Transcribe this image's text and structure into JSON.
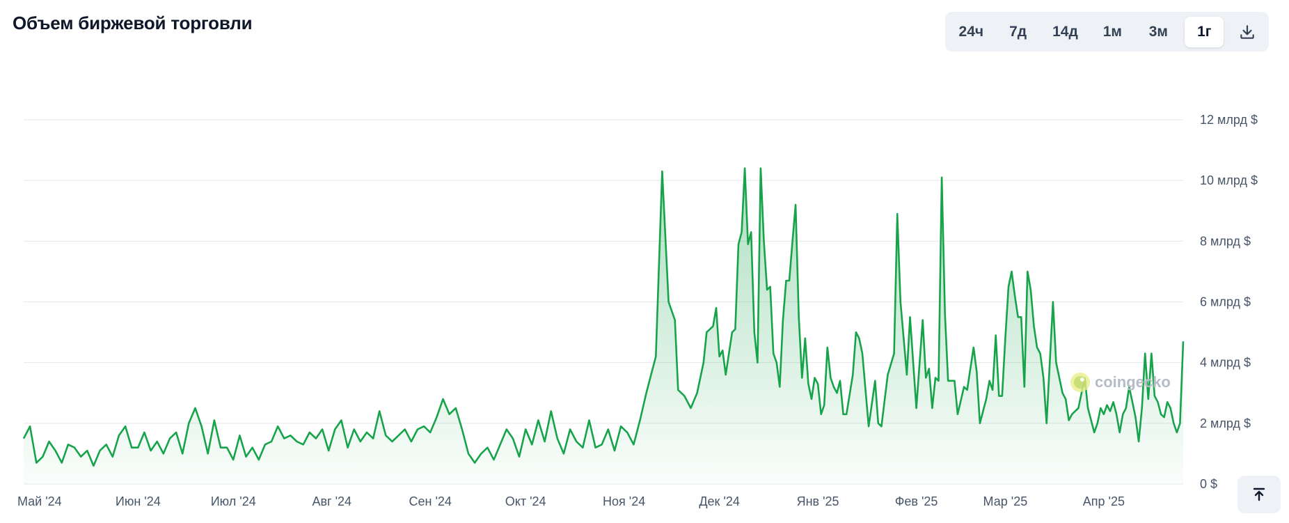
{
  "header": {
    "title": "Объем биржевой торговли"
  },
  "range_selector": {
    "options": [
      "24ч",
      "7д",
      "14д",
      "1м",
      "3м",
      "1г"
    ],
    "active": "1г",
    "download_icon": "download-icon"
  },
  "watermark": {
    "text": "coingecko",
    "icon": "coingecko-logo-icon"
  },
  "scroll_top": {
    "icon": "arrow-up-to-top-icon"
  },
  "colors": {
    "line": "#16a34a",
    "fill": "#16a34a",
    "grid": "#e5e7eb"
  },
  "chart_data": {
    "type": "area",
    "title": "Объем биржевой торговли",
    "x_tick_labels": [
      "Май '24",
      "Июн '24",
      "Июл '24",
      "Авг '24",
      "Сен '24",
      "Окт '24",
      "Ноя '24",
      "Дек '24",
      "Янв '25",
      "Фев '25",
      "Мар '25",
      "Апр '25"
    ],
    "y_tick_labels": [
      "0 $",
      "2 млрд $",
      "4 млрд $",
      "6 млрд $",
      "8 млрд $",
      "10 млрд $",
      "12 млрд $"
    ],
    "y_unit": "млрд $",
    "ylim": [
      0,
      12
    ],
    "xlim": [
      "2024-04-26",
      "2025-04-26"
    ],
    "grid": true,
    "axis_side": "right",
    "series": [
      {
        "points": [
          [
            "2024-04-26",
            1.5
          ],
          [
            "2024-04-28",
            1.9
          ],
          [
            "2024-04-30",
            0.7
          ],
          [
            "2024-05-02",
            0.9
          ],
          [
            "2024-05-04",
            1.4
          ],
          [
            "2024-05-06",
            1.1
          ],
          [
            "2024-05-08",
            0.7
          ],
          [
            "2024-05-10",
            1.3
          ],
          [
            "2024-05-12",
            1.2
          ],
          [
            "2024-05-14",
            0.9
          ],
          [
            "2024-05-16",
            1.1
          ],
          [
            "2024-05-18",
            0.6
          ],
          [
            "2024-05-20",
            1.1
          ],
          [
            "2024-05-22",
            1.3
          ],
          [
            "2024-05-24",
            0.9
          ],
          [
            "2024-05-26",
            1.6
          ],
          [
            "2024-05-28",
            1.9
          ],
          [
            "2024-05-30",
            1.2
          ],
          [
            "2024-06-01",
            1.2
          ],
          [
            "2024-06-03",
            1.7
          ],
          [
            "2024-06-05",
            1.1
          ],
          [
            "2024-06-07",
            1.4
          ],
          [
            "2024-06-09",
            1.0
          ],
          [
            "2024-06-11",
            1.5
          ],
          [
            "2024-06-13",
            1.7
          ],
          [
            "2024-06-15",
            1.0
          ],
          [
            "2024-06-17",
            2.0
          ],
          [
            "2024-06-19",
            2.5
          ],
          [
            "2024-06-21",
            1.9
          ],
          [
            "2024-06-23",
            1.0
          ],
          [
            "2024-06-25",
            2.1
          ],
          [
            "2024-06-27",
            1.2
          ],
          [
            "2024-06-29",
            1.2
          ],
          [
            "2024-07-01",
            0.8
          ],
          [
            "2024-07-03",
            1.6
          ],
          [
            "2024-07-05",
            0.9
          ],
          [
            "2024-07-07",
            1.2
          ],
          [
            "2024-07-09",
            0.8
          ],
          [
            "2024-07-11",
            1.3
          ],
          [
            "2024-07-13",
            1.4
          ],
          [
            "2024-07-15",
            1.9
          ],
          [
            "2024-07-17",
            1.5
          ],
          [
            "2024-07-19",
            1.6
          ],
          [
            "2024-07-21",
            1.4
          ],
          [
            "2024-07-23",
            1.3
          ],
          [
            "2024-07-25",
            1.7
          ],
          [
            "2024-07-27",
            1.5
          ],
          [
            "2024-07-29",
            1.8
          ],
          [
            "2024-07-31",
            1.1
          ],
          [
            "2024-08-02",
            1.8
          ],
          [
            "2024-08-04",
            2.1
          ],
          [
            "2024-08-06",
            1.2
          ],
          [
            "2024-08-08",
            1.8
          ],
          [
            "2024-08-10",
            1.4
          ],
          [
            "2024-08-12",
            1.7
          ],
          [
            "2024-08-14",
            1.5
          ],
          [
            "2024-08-16",
            2.4
          ],
          [
            "2024-08-18",
            1.6
          ],
          [
            "2024-08-20",
            1.4
          ],
          [
            "2024-08-22",
            1.6
          ],
          [
            "2024-08-24",
            1.8
          ],
          [
            "2024-08-26",
            1.4
          ],
          [
            "2024-08-28",
            1.8
          ],
          [
            "2024-08-30",
            1.9
          ],
          [
            "2024-09-01",
            1.7
          ],
          [
            "2024-09-03",
            2.2
          ],
          [
            "2024-09-05",
            2.8
          ],
          [
            "2024-09-07",
            2.3
          ],
          [
            "2024-09-09",
            2.5
          ],
          [
            "2024-09-11",
            1.8
          ],
          [
            "2024-09-13",
            1.0
          ],
          [
            "2024-09-15",
            0.7
          ],
          [
            "2024-09-17",
            1.0
          ],
          [
            "2024-09-19",
            1.2
          ],
          [
            "2024-09-21",
            0.8
          ],
          [
            "2024-09-23",
            1.3
          ],
          [
            "2024-09-25",
            1.8
          ],
          [
            "2024-09-27",
            1.5
          ],
          [
            "2024-09-29",
            0.9
          ],
          [
            "2024-10-01",
            1.8
          ],
          [
            "2024-10-03",
            1.3
          ],
          [
            "2024-10-05",
            2.1
          ],
          [
            "2024-10-07",
            1.4
          ],
          [
            "2024-10-09",
            2.4
          ],
          [
            "2024-10-11",
            1.5
          ],
          [
            "2024-10-13",
            1.0
          ],
          [
            "2024-10-15",
            1.8
          ],
          [
            "2024-10-17",
            1.4
          ],
          [
            "2024-10-19",
            1.2
          ],
          [
            "2024-10-21",
            2.1
          ],
          [
            "2024-10-23",
            1.2
          ],
          [
            "2024-10-25",
            1.3
          ],
          [
            "2024-10-27",
            1.8
          ],
          [
            "2024-10-29",
            1.1
          ],
          [
            "2024-10-31",
            1.9
          ],
          [
            "2024-11-02",
            1.7
          ],
          [
            "2024-11-04",
            1.3
          ],
          [
            "2024-11-06",
            2.1
          ],
          [
            "2024-11-08",
            3.0
          ],
          [
            "2024-11-10",
            3.8
          ],
          [
            "2024-11-11",
            4.2
          ],
          [
            "2024-11-13",
            10.3
          ],
          [
            "2024-11-15",
            6.0
          ],
          [
            "2024-11-17",
            5.4
          ],
          [
            "2024-11-18",
            3.1
          ],
          [
            "2024-11-20",
            2.9
          ],
          [
            "2024-11-22",
            2.5
          ],
          [
            "2024-11-24",
            3.0
          ],
          [
            "2024-11-26",
            4.0
          ],
          [
            "2024-11-27",
            5.0
          ],
          [
            "2024-11-29",
            5.2
          ],
          [
            "2024-11-30",
            5.8
          ],
          [
            "2024-12-01",
            4.2
          ],
          [
            "2024-12-02",
            4.4
          ],
          [
            "2024-12-03",
            3.6
          ],
          [
            "2024-12-05",
            5.0
          ],
          [
            "2024-12-06",
            5.1
          ],
          [
            "2024-12-07",
            7.9
          ],
          [
            "2024-12-08",
            8.3
          ],
          [
            "2024-12-09",
            10.4
          ],
          [
            "2024-12-10",
            7.9
          ],
          [
            "2024-12-11",
            8.3
          ],
          [
            "2024-12-12",
            5.0
          ],
          [
            "2024-12-13",
            4.0
          ],
          [
            "2024-12-14",
            10.4
          ],
          [
            "2024-12-15",
            8.0
          ],
          [
            "2024-12-16",
            6.4
          ],
          [
            "2024-12-17",
            6.5
          ],
          [
            "2024-12-18",
            4.3
          ],
          [
            "2024-12-19",
            4.0
          ],
          [
            "2024-12-20",
            3.2
          ],
          [
            "2024-12-21",
            5.4
          ],
          [
            "2024-12-22",
            6.7
          ],
          [
            "2024-12-23",
            6.7
          ],
          [
            "2024-12-24",
            8.0
          ],
          [
            "2024-12-25",
            9.2
          ],
          [
            "2024-12-26",
            5.5
          ],
          [
            "2024-12-27",
            3.5
          ],
          [
            "2024-12-28",
            4.8
          ],
          [
            "2024-12-29",
            3.3
          ],
          [
            "2024-12-30",
            2.8
          ],
          [
            "2024-12-31",
            3.5
          ],
          [
            "2025-01-01",
            3.3
          ],
          [
            "2025-01-02",
            2.3
          ],
          [
            "2025-01-03",
            2.6
          ],
          [
            "2025-01-04",
            4.5
          ],
          [
            "2025-01-05",
            3.5
          ],
          [
            "2025-01-06",
            3.2
          ],
          [
            "2025-01-07",
            3.0
          ],
          [
            "2025-01-08",
            3.4
          ],
          [
            "2025-01-09",
            2.3
          ],
          [
            "2025-01-10",
            2.3
          ],
          [
            "2025-01-12",
            3.6
          ],
          [
            "2025-01-13",
            5.0
          ],
          [
            "2025-01-14",
            4.8
          ],
          [
            "2025-01-15",
            4.3
          ],
          [
            "2025-01-17",
            1.9
          ],
          [
            "2025-01-19",
            3.4
          ],
          [
            "2025-01-20",
            2.0
          ],
          [
            "2025-01-21",
            1.9
          ],
          [
            "2025-01-23",
            3.6
          ],
          [
            "2025-01-25",
            4.3
          ],
          [
            "2025-01-26",
            8.9
          ],
          [
            "2025-01-27",
            6.0
          ],
          [
            "2025-01-29",
            3.6
          ],
          [
            "2025-01-30",
            5.5
          ],
          [
            "2025-02-01",
            2.5
          ],
          [
            "2025-02-03",
            5.4
          ],
          [
            "2025-02-04",
            3.5
          ],
          [
            "2025-02-05",
            3.8
          ],
          [
            "2025-02-06",
            2.5
          ],
          [
            "2025-02-07",
            3.5
          ],
          [
            "2025-02-08",
            3.4
          ],
          [
            "2025-02-09",
            10.1
          ],
          [
            "2025-02-10",
            5.6
          ],
          [
            "2025-02-11",
            3.4
          ],
          [
            "2025-02-12",
            3.4
          ],
          [
            "2025-02-13",
            3.4
          ],
          [
            "2025-02-14",
            2.3
          ],
          [
            "2025-02-16",
            3.2
          ],
          [
            "2025-02-17",
            3.1
          ],
          [
            "2025-02-19",
            4.5
          ],
          [
            "2025-02-20",
            3.7
          ],
          [
            "2025-02-21",
            2.0
          ],
          [
            "2025-02-23",
            2.8
          ],
          [
            "2025-02-24",
            3.4
          ],
          [
            "2025-02-25",
            3.1
          ],
          [
            "2025-02-26",
            4.9
          ],
          [
            "2025-02-27",
            2.9
          ],
          [
            "2025-02-28",
            2.9
          ],
          [
            "2025-03-01",
            4.8
          ],
          [
            "2025-03-02",
            6.5
          ],
          [
            "2025-03-03",
            7.0
          ],
          [
            "2025-03-04",
            6.2
          ],
          [
            "2025-03-05",
            5.5
          ],
          [
            "2025-03-06",
            5.5
          ],
          [
            "2025-03-07",
            3.2
          ],
          [
            "2025-03-08",
            7.0
          ],
          [
            "2025-03-09",
            6.4
          ],
          [
            "2025-03-10",
            5.2
          ],
          [
            "2025-03-11",
            4.5
          ],
          [
            "2025-03-12",
            4.3
          ],
          [
            "2025-03-13",
            3.5
          ],
          [
            "2025-03-14",
            2.0
          ],
          [
            "2025-03-15",
            4.0
          ],
          [
            "2025-03-16",
            6.0
          ],
          [
            "2025-03-17",
            4.0
          ],
          [
            "2025-03-19",
            3.0
          ],
          [
            "2025-03-20",
            2.8
          ],
          [
            "2025-03-21",
            2.1
          ],
          [
            "2025-03-22",
            2.3
          ],
          [
            "2025-03-24",
            2.5
          ],
          [
            "2025-03-26",
            3.5
          ],
          [
            "2025-03-27",
            2.5
          ],
          [
            "2025-03-29",
            1.7
          ],
          [
            "2025-03-30",
            2.0
          ],
          [
            "2025-03-31",
            2.5
          ],
          [
            "2025-04-01",
            2.3
          ],
          [
            "2025-04-02",
            2.6
          ],
          [
            "2025-04-03",
            2.4
          ],
          [
            "2025-04-04",
            2.7
          ],
          [
            "2025-04-05",
            2.3
          ],
          [
            "2025-04-06",
            1.7
          ],
          [
            "2025-04-07",
            2.3
          ],
          [
            "2025-04-08",
            2.5
          ],
          [
            "2025-04-09",
            3.2
          ],
          [
            "2025-04-10",
            2.7
          ],
          [
            "2025-04-11",
            2.2
          ],
          [
            "2025-04-12",
            1.4
          ],
          [
            "2025-04-13",
            2.5
          ],
          [
            "2025-04-14",
            4.3
          ],
          [
            "2025-04-15",
            2.8
          ],
          [
            "2025-04-16",
            4.3
          ],
          [
            "2025-04-17",
            2.9
          ],
          [
            "2025-04-18",
            2.7
          ],
          [
            "2025-04-19",
            2.3
          ],
          [
            "2025-04-20",
            2.2
          ],
          [
            "2025-04-21",
            2.7
          ],
          [
            "2025-04-22",
            2.5
          ],
          [
            "2025-04-23",
            2.0
          ],
          [
            "2025-04-24",
            1.7
          ],
          [
            "2025-04-25",
            2.0
          ],
          [
            "2025-04-26",
            4.7
          ]
        ]
      }
    ]
  }
}
